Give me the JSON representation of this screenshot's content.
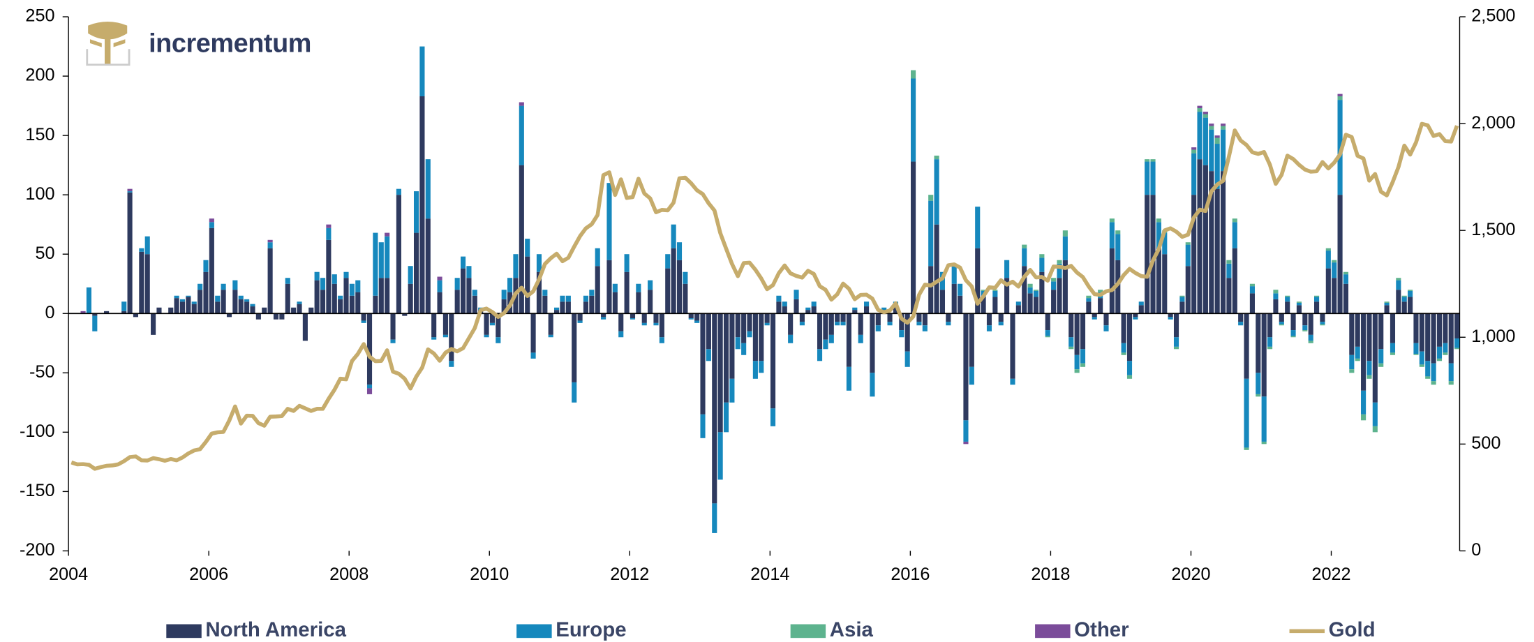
{
  "chart_data": {
    "type": "bar",
    "stacked": true,
    "legend": "bottom",
    "xlim": [
      2004,
      2023.83
    ],
    "xticks": [
      2004,
      2006,
      2008,
      2010,
      2012,
      2014,
      2016,
      2018,
      2020,
      2022
    ],
    "ylim": [
      -200,
      250
    ],
    "yticks": [
      -200,
      -150,
      -100,
      -50,
      0,
      50,
      100,
      150,
      200,
      250
    ],
    "y2lim": [
      0,
      2500
    ],
    "y2ticks": [
      0,
      500,
      {
        "value": 1000,
        "label": "1,000"
      },
      {
        "value": 1500,
        "label": "1,500"
      },
      {
        "value": 2000,
        "label": "2,000"
      },
      {
        "value": 2500,
        "label": "2,500"
      }
    ],
    "series": [
      {
        "name": "North America",
        "color": "#2e3a5f",
        "values": [
          0,
          0,
          0,
          0,
          -2,
          0,
          2,
          0,
          0,
          2,
          102,
          -3,
          52,
          50,
          -18,
          5,
          0,
          5,
          13,
          10,
          14,
          8,
          20,
          35,
          72,
          10,
          20,
          -3,
          20,
          12,
          10,
          6,
          -5,
          5,
          55,
          -5,
          -5,
          25,
          5,
          8,
          -23,
          5,
          28,
          20,
          62,
          25,
          12,
          30,
          15,
          18,
          -6,
          -60,
          15,
          30,
          30,
          -22,
          100,
          -2,
          25,
          68,
          183,
          80,
          -20,
          18,
          -18,
          -40,
          20,
          38,
          30,
          15,
          3,
          -18,
          -8,
          -20,
          12,
          18,
          30,
          125,
          48,
          -33,
          35,
          15,
          -18,
          3,
          10,
          10,
          -58,
          -6,
          10,
          15,
          40,
          -3,
          45,
          18,
          -15,
          35,
          -4,
          18,
          -8,
          20,
          -8,
          -20,
          38,
          55,
          45,
          25,
          -4,
          -6,
          -85,
          -30,
          -160,
          -100,
          -75,
          -55,
          -20,
          -25,
          -15,
          -40,
          -40,
          -8,
          -80,
          10,
          6,
          -18,
          12,
          -7,
          3,
          6,
          -30,
          -22,
          -18,
          -7,
          -7,
          -45,
          3,
          -18,
          6,
          -50,
          -10,
          3,
          -7,
          6,
          -14,
          -32,
          128,
          -7,
          -10,
          40,
          75,
          20,
          -7,
          25,
          15,
          -90,
          -45,
          55,
          14,
          -10,
          14,
          -7,
          30,
          -55,
          7,
          40,
          17,
          14,
          35,
          -14,
          20,
          30,
          45,
          -20,
          -35,
          -30,
          10,
          -3,
          13,
          -10,
          55,
          45,
          -25,
          -40,
          -3,
          7,
          100,
          100,
          55,
          50,
          -3,
          -20,
          10,
          40,
          100,
          130,
          125,
          120,
          105,
          120,
          30,
          55,
          -7,
          -55,
          17,
          -50,
          -70,
          -20,
          12,
          -7,
          10,
          -14,
          7,
          -10,
          -18,
          10,
          -7,
          38,
          30,
          100,
          25,
          -35,
          -28,
          -65,
          -40,
          -75,
          -30,
          7,
          -25,
          20,
          10,
          14,
          -25,
          -32,
          -40,
          -42,
          -28,
          -25,
          -42,
          -21
        ]
      },
      {
        "name": "Europe",
        "color": "#1688bd",
        "values": [
          0,
          0,
          0,
          22,
          -13,
          0,
          0,
          0,
          0,
          8,
          1,
          0,
          3,
          15,
          0,
          0,
          0,
          0,
          2,
          2,
          1,
          2,
          5,
          10,
          5,
          5,
          5,
          0,
          8,
          3,
          2,
          2,
          0,
          0,
          5,
          0,
          0,
          5,
          0,
          2,
          0,
          0,
          7,
          10,
          10,
          8,
          3,
          5,
          10,
          10,
          -2,
          -3,
          53,
          30,
          35,
          -3,
          5,
          0,
          15,
          35,
          42,
          50,
          -2,
          10,
          -2,
          -5,
          10,
          10,
          10,
          5,
          2,
          -2,
          -2,
          -5,
          8,
          12,
          20,
          50,
          15,
          -5,
          15,
          5,
          -2,
          2,
          5,
          5,
          -17,
          -2,
          5,
          5,
          15,
          -2,
          65,
          7,
          -5,
          15,
          -1,
          7,
          -2,
          8,
          -2,
          -5,
          12,
          20,
          15,
          10,
          -1,
          -2,
          -20,
          -10,
          -25,
          -40,
          -25,
          -20,
          -10,
          -10,
          -5,
          -15,
          -10,
          -2,
          -15,
          5,
          4,
          -7,
          8,
          -3,
          2,
          4,
          -10,
          -8,
          -7,
          -3,
          -3,
          -20,
          2,
          -7,
          4,
          -20,
          -5,
          2,
          -3,
          4,
          -6,
          -13,
          70,
          -3,
          -5,
          55,
          55,
          15,
          -3,
          15,
          10,
          -18,
          -15,
          35,
          5,
          -5,
          5,
          -3,
          15,
          -5,
          3,
          15,
          5,
          5,
          12,
          -5,
          7,
          12,
          20,
          -8,
          -12,
          -12,
          3,
          -2,
          5,
          -5,
          22,
          22,
          -8,
          -12,
          -2,
          3,
          28,
          28,
          22,
          18,
          -2,
          -8,
          4,
          18,
          35,
          40,
          40,
          35,
          38,
          35,
          12,
          22,
          -3,
          -58,
          6,
          -18,
          -38,
          -8,
          5,
          -2,
          4,
          -5,
          2,
          -4,
          -5,
          4,
          -2,
          15,
          13,
          80,
          8,
          -12,
          -10,
          -20,
          -12,
          -20,
          -12,
          2,
          -8,
          8,
          4,
          5,
          -9,
          -11,
          -13,
          -15,
          -10,
          -8,
          -15,
          -8
        ]
      },
      {
        "name": "Asia",
        "color": "#5db38e",
        "values": [
          0,
          0,
          0,
          0,
          0,
          0,
          0,
          0,
          0,
          0,
          0,
          0,
          0,
          0,
          0,
          0,
          0,
          0,
          0,
          0,
          0,
          0,
          0,
          0,
          0,
          0,
          0,
          0,
          0,
          0,
          0,
          0,
          0,
          0,
          0,
          0,
          0,
          0,
          0,
          0,
          0,
          0,
          0,
          0,
          0,
          0,
          0,
          0,
          0,
          0,
          0,
          0,
          0,
          0,
          0,
          0,
          0,
          0,
          0,
          0,
          0,
          0,
          0,
          0,
          0,
          0,
          0,
          0,
          0,
          0,
          0,
          0,
          0,
          0,
          0,
          0,
          0,
          0,
          0,
          0,
          0,
          0,
          0,
          0,
          0,
          0,
          0,
          0,
          0,
          0,
          0,
          0,
          0,
          0,
          0,
          0,
          0,
          0,
          0,
          0,
          0,
          0,
          0,
          0,
          0,
          0,
          0,
          0,
          0,
          0,
          0,
          0,
          0,
          0,
          0,
          0,
          0,
          0,
          0,
          0,
          0,
          0,
          0,
          0,
          0,
          0,
          0,
          0,
          0,
          0,
          0,
          0,
          0,
          0,
          0,
          0,
          0,
          0,
          0,
          0,
          0,
          0,
          0,
          0,
          7,
          0,
          0,
          5,
          3,
          0,
          0,
          0,
          0,
          0,
          0,
          0,
          1,
          0,
          1,
          0,
          0,
          0,
          0,
          3,
          3,
          1,
          3,
          -1,
          3,
          3,
          5,
          -2,
          -3,
          -3,
          2,
          0,
          2,
          0,
          3,
          3,
          -2,
          -3,
          0,
          0,
          2,
          2,
          3,
          2,
          0,
          -2,
          1,
          2,
          3,
          3,
          3,
          3,
          5,
          3,
          3,
          3,
          0,
          -2,
          2,
          -2,
          -2,
          -2,
          3,
          -1,
          1,
          -1,
          1,
          -1,
          -2,
          1,
          -1,
          2,
          2,
          3,
          2,
          -3,
          -2,
          -5,
          -3,
          -5,
          -3,
          1,
          -2,
          2,
          1,
          1,
          -1,
          -2,
          -2,
          -3,
          -2,
          -2,
          -3,
          -1
        ]
      },
      {
        "name": "Other",
        "color": "#7b4c9a",
        "values": [
          0,
          0,
          2,
          0,
          0,
          0,
          0,
          0,
          0,
          0,
          2,
          0,
          0,
          0,
          0,
          0,
          0,
          0,
          0,
          0,
          0,
          0,
          0,
          0,
          3,
          0,
          0,
          0,
          0,
          0,
          0,
          0,
          0,
          0,
          2,
          0,
          0,
          0,
          0,
          0,
          0,
          0,
          0,
          0,
          3,
          0,
          0,
          0,
          0,
          0,
          0,
          -5,
          0,
          0,
          3,
          0,
          0,
          0,
          0,
          0,
          0,
          0,
          0,
          3,
          0,
          0,
          0,
          0,
          0,
          0,
          0,
          0,
          0,
          0,
          0,
          0,
          0,
          3,
          0,
          0,
          0,
          0,
          0,
          0,
          0,
          0,
          0,
          0,
          0,
          0,
          0,
          0,
          0,
          0,
          0,
          0,
          0,
          0,
          0,
          0,
          0,
          0,
          0,
          0,
          0,
          0,
          0,
          0,
          0,
          0,
          0,
          0,
          0,
          0,
          0,
          0,
          0,
          0,
          0,
          0,
          0,
          0,
          0,
          0,
          0,
          0,
          0,
          0,
          0,
          0,
          0,
          0,
          0,
          0,
          0,
          0,
          0,
          0,
          0,
          0,
          0,
          0,
          0,
          0,
          0,
          0,
          0,
          0,
          0,
          0,
          0,
          0,
          0,
          -2,
          0,
          0,
          0,
          0,
          0,
          0,
          0,
          0,
          0,
          0,
          0,
          0,
          0,
          0,
          0,
          0,
          0,
          0,
          0,
          0,
          0,
          0,
          0,
          0,
          0,
          0,
          0,
          0,
          0,
          0,
          0,
          0,
          0,
          0,
          0,
          0,
          0,
          0,
          2,
          2,
          2,
          2,
          2,
          2,
          0,
          0,
          0,
          0,
          0,
          0,
          0,
          0,
          0,
          0,
          0,
          0,
          0,
          0,
          0,
          0,
          0,
          0,
          0,
          2,
          0,
          0,
          0,
          0,
          0,
          0,
          0,
          0,
          0,
          0,
          0,
          0,
          0,
          0,
          0,
          0,
          0,
          0,
          0,
          0
        ]
      },
      {
        "name": "Gold",
        "color": "#c6ac6c",
        "type": "line",
        "axis": "y2",
        "values": [
          414,
          405,
          406,
          403,
          384,
          392,
          398,
          400,
          405,
          420,
          439,
          442,
          424,
          423,
          434,
          429,
          422,
          430,
          424,
          437,
          456,
          470,
          476,
          510,
          549,
          555,
          557,
          610,
          676,
          596,
          633,
          632,
          598,
          586,
          628,
          629,
          631,
          665,
          655,
          679,
          667,
          655,
          665,
          665,
          712,
          754,
          806,
          803,
          889,
          922,
          968,
          909,
          888,
          889,
          939,
          839,
          829,
          806,
          760,
          816,
          858,
          943,
          924,
          890,
          928,
          945,
          934,
          949,
          996,
          1043,
          1127,
          1134,
          1118,
          1095,
          1113,
          1148,
          1205,
          1232,
          1193,
          1215,
          1271,
          1343,
          1370,
          1391,
          1356,
          1372,
          1424,
          1473,
          1510,
          1529,
          1572,
          1759,
          1772,
          1666,
          1739,
          1652,
          1656,
          1742,
          1673,
          1650,
          1585,
          1596,
          1594,
          1630,
          1744,
          1747,
          1721,
          1688,
          1670,
          1627,
          1593,
          1487,
          1414,
          1343,
          1286,
          1347,
          1349,
          1316,
          1275,
          1225,
          1244,
          1300,
          1336,
          1299,
          1287,
          1279,
          1311,
          1296,
          1239,
          1222,
          1176,
          1201,
          1251,
          1227,
          1178,
          1198,
          1199,
          1181,
          1128,
          1117,
          1125,
          1159,
          1087,
          1068,
          1097,
          1199,
          1246,
          1242,
          1260,
          1276,
          1337,
          1341,
          1326,
          1267,
          1238,
          1157,
          1192,
          1234,
          1231,
          1267,
          1246,
          1260,
          1237,
          1283,
          1315,
          1280,
          1282,
          1265,
          1331,
          1330,
          1324,
          1334,
          1303,
          1282,
          1238,
          1202,
          1198,
          1215,
          1221,
          1250,
          1291,
          1320,
          1301,
          1286,
          1283,
          1359,
          1413,
          1500,
          1510,
          1494,
          1470,
          1480,
          1560,
          1597,
          1591,
          1683,
          1715,
          1732,
          1847,
          1968,
          1921,
          1900,
          1866,
          1858,
          1867,
          1808,
          1718,
          1760,
          1850,
          1834,
          1807,
          1785,
          1775,
          1777,
          1820,
          1790,
          1817,
          1856,
          1948,
          1937,
          1849,
          1837,
          1733,
          1764,
          1681,
          1664,
          1726,
          1797,
          1897,
          1855,
          1912,
          1999,
          1992,
          1942,
          1951,
          1918,
          1916,
          1990
        ]
      }
    ]
  },
  "logo": "incrementum"
}
